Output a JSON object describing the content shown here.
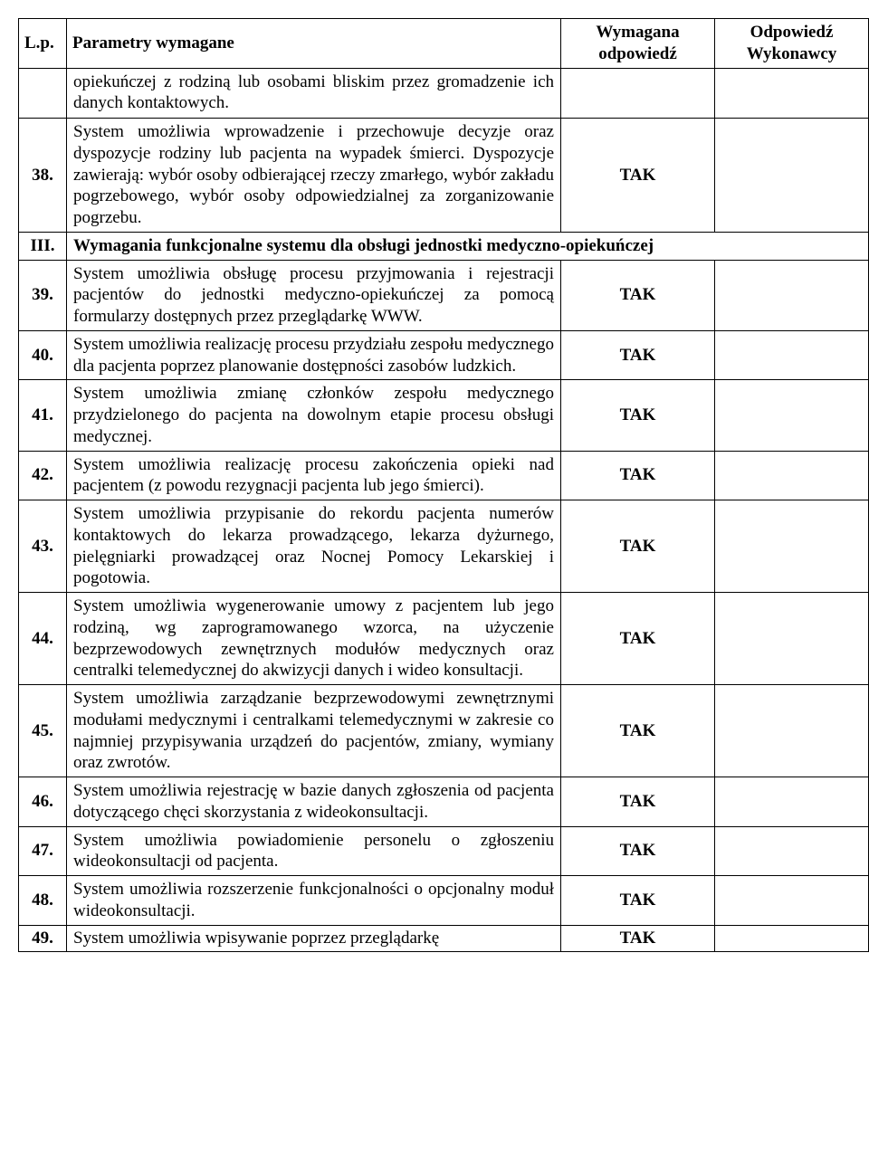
{
  "headers": {
    "lp": "L.p.",
    "param": "Parametry wymagane",
    "req_l1": "Wymagana",
    "req_l2": "odpowiedź",
    "ans_l1": "Odpowiedź",
    "ans_l2": "Wykonawcy"
  },
  "topFragment": {
    "param": "opiekuńczej z rodziną lub osobami bliskim przez gromadzenie ich danych kontaktowych."
  },
  "rows": [
    {
      "lp": "38.",
      "param": "System umożliwia wprowadzenie i przechowuje decyzje oraz dyspozycje rodziny lub pacjenta na wypadek śmierci. Dyspozycje zawierają: wybór osoby odbierającej rzeczy zmarłego, wybór zakładu pogrzebowego, wybór osoby odpowiedzialnej za zorganizowanie pogrzebu.",
      "req": "TAK"
    }
  ],
  "section": {
    "lp": "III.",
    "title": "Wymagania funkcjonalne systemu dla obsługi jednostki medyczno-opiekuńczej"
  },
  "rows2": [
    {
      "lp": "39.",
      "param": "System umożliwia obsługę procesu przyjmowania i rejestracji pacjentów do jednostki medyczno-opiekuńczej za pomocą formularzy dostępnych przez przeglądarkę WWW.",
      "req": "TAK"
    },
    {
      "lp": "40.",
      "param": "System umożliwia realizację procesu przydziału zespołu medycznego dla pacjenta poprzez planowanie dostępności zasobów ludzkich.",
      "req": "TAK"
    },
    {
      "lp": "41.",
      "param": "System umożliwia zmianę członków zespołu medycznego przydzielonego do pacjenta na dowolnym etapie procesu obsługi medycznej.",
      "req": "TAK"
    },
    {
      "lp": "42.",
      "param": "System umożliwia realizację procesu zakończenia opieki nad pacjentem (z powodu rezygnacji pacjenta lub jego śmierci).",
      "req": "TAK"
    },
    {
      "lp": "43.",
      "param": "System umożliwia przypisanie do rekordu pacjenta numerów kontaktowych do lekarza prowadzącego, lekarza dyżurnego, pielęgniarki prowadzącej oraz Nocnej Pomocy Lekarskiej i pogotowia.",
      "req": "TAK"
    },
    {
      "lp": "44.",
      "param": "System umożliwia wygenerowanie umowy z pacjentem lub jego rodziną, wg zaprogramowanego wzorca, na użyczenie bezprzewodowych zewnętrznych modułów medycznych oraz centralki telemedycznej do akwizycji danych i wideo konsultacji.",
      "req": "TAK"
    },
    {
      "lp": "45.",
      "param": "System umożliwia zarządzanie bezprzewodowymi zewnętrznymi modułami medycznymi i centralkami telemedycznymi w zakresie co najmniej przypisywania urządzeń do pacjentów, zmiany, wymiany oraz zwrotów.",
      "req": "TAK"
    },
    {
      "lp": "46.",
      "param": "System umożliwia rejestrację w bazie danych zgłoszenia od pacjenta dotyczącego chęci skorzystania z wideokonsultacji.",
      "req": "TAK"
    },
    {
      "lp": "47.",
      "param": "System umożliwia powiadomienie personelu o zgłoszeniu wideokonsultacji od pacjenta.",
      "req": "TAK"
    },
    {
      "lp": "48.",
      "param": "System umożliwia rozszerzenie funkcjonalności o opcjonalny moduł wideokonsultacji.",
      "req": "TAK"
    }
  ],
  "bottomFragment": {
    "lp": "49.",
    "param": "System umożliwia wpisywanie poprzez przeglądarkę",
    "req": "TAK"
  },
  "style": {
    "background": "#ffffff",
    "text_color": "#000000",
    "border_color": "#000000",
    "font_family": "Times New Roman",
    "font_size_pt": 14
  }
}
